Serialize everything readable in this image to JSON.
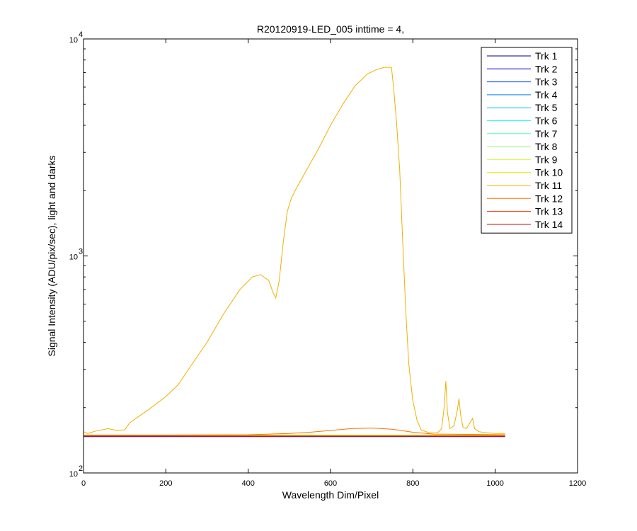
{
  "chart_data": {
    "type": "line",
    "title": "R20120919-LED_005 inttime = 4,",
    "xlabel": "Wavelength Dim/Pixel",
    "ylabel": "Signal Intensity (ADU/pix/sec), light and darks",
    "xlim": [
      0,
      1200
    ],
    "ylim": [
      100,
      10000
    ],
    "yscale": "log",
    "x_ticks": [
      0,
      200,
      400,
      600,
      800,
      1000,
      1200
    ],
    "y_ticks": [
      {
        "base": "10",
        "exp": "2",
        "value": 100
      },
      {
        "base": "10",
        "exp": "3",
        "value": 1000
      },
      {
        "base": "10",
        "exp": "4",
        "value": 10000
      }
    ],
    "grid": false,
    "legend_position": "top-right",
    "series": [
      {
        "name": "Trk 1",
        "color": "#00008f",
        "x": [
          0,
          1024
        ],
        "y": [
          148,
          148
        ]
      },
      {
        "name": "Trk 2",
        "color": "#0000d0",
        "x": [
          0,
          1024
        ],
        "y": [
          147,
          147
        ]
      },
      {
        "name": "Trk 3",
        "color": "#0040ff",
        "x": [
          0,
          1024
        ],
        "y": [
          148.5,
          148.5
        ]
      },
      {
        "name": "Trk 4",
        "color": "#0080ff",
        "x": [
          0,
          1024
        ],
        "y": [
          149,
          149
        ]
      },
      {
        "name": "Trk 5",
        "color": "#00c0ff",
        "x": [
          0,
          1024
        ],
        "y": [
          148,
          148
        ]
      },
      {
        "name": "Trk 6",
        "color": "#10ffef",
        "x": [
          0,
          1024
        ],
        "y": [
          147.5,
          147.5
        ]
      },
      {
        "name": "Trk 7",
        "color": "#50ffaf",
        "x": [
          0,
          1024
        ],
        "y": [
          148,
          148
        ]
      },
      {
        "name": "Trk 8",
        "color": "#8fff70",
        "x": [
          0,
          1024
        ],
        "y": [
          148.5,
          148.5
        ]
      },
      {
        "name": "Trk 9",
        "color": "#cfff30",
        "x": [
          0,
          1024
        ],
        "y": [
          149,
          149
        ]
      },
      {
        "name": "Trk 10",
        "color": "#e8e800",
        "x": [
          0,
          1024
        ],
        "y": [
          149.5,
          149.5
        ]
      },
      {
        "name": "Trk 11",
        "color": "#f0b000",
        "x": [
          0,
          10,
          30,
          60,
          80,
          100,
          112,
          130,
          160,
          200,
          230,
          260,
          300,
          340,
          380,
          410,
          430,
          450,
          460,
          467,
          475,
          485,
          495,
          505,
          520,
          545,
          570,
          600,
          630,
          660,
          690,
          710,
          730,
          748,
          753,
          760,
          768,
          775,
          783,
          790,
          795,
          800,
          810,
          820,
          840,
          860,
          870,
          876,
          880,
          884,
          890,
          900,
          908,
          912,
          916,
          922,
          930,
          940,
          945,
          950,
          960,
          980,
          1000,
          1024
        ],
        "y": [
          155,
          152,
          156,
          160,
          157,
          158,
          170,
          180,
          197,
          225,
          255,
          310,
          400,
          540,
          700,
          800,
          820,
          770,
          680,
          640,
          760,
          1150,
          1600,
          1850,
          2100,
          2550,
          3100,
          4000,
          5000,
          6100,
          6900,
          7200,
          7400,
          7400,
          6000,
          4200,
          2500,
          1200,
          550,
          320,
          260,
          215,
          175,
          158,
          153,
          153,
          160,
          200,
          265,
          190,
          160,
          165,
          195,
          220,
          185,
          162,
          160,
          172,
          178,
          160,
          155,
          153,
          152,
          152
        ]
      },
      {
        "name": "Trk 12",
        "color": "#ff7000",
        "x": [
          0,
          400,
          500,
          550,
          600,
          650,
          700,
          750,
          800,
          850,
          1024
        ],
        "y": [
          149,
          150,
          152,
          154,
          157,
          160,
          161,
          159,
          154,
          151,
          150
        ]
      },
      {
        "name": "Trk 13",
        "color": "#f03000",
        "x": [
          0,
          1024
        ],
        "y": [
          148,
          148
        ]
      },
      {
        "name": "Trk 14",
        "color": "#c00000",
        "x": [
          0,
          1024
        ],
        "y": [
          147.5,
          147.5
        ]
      }
    ]
  }
}
